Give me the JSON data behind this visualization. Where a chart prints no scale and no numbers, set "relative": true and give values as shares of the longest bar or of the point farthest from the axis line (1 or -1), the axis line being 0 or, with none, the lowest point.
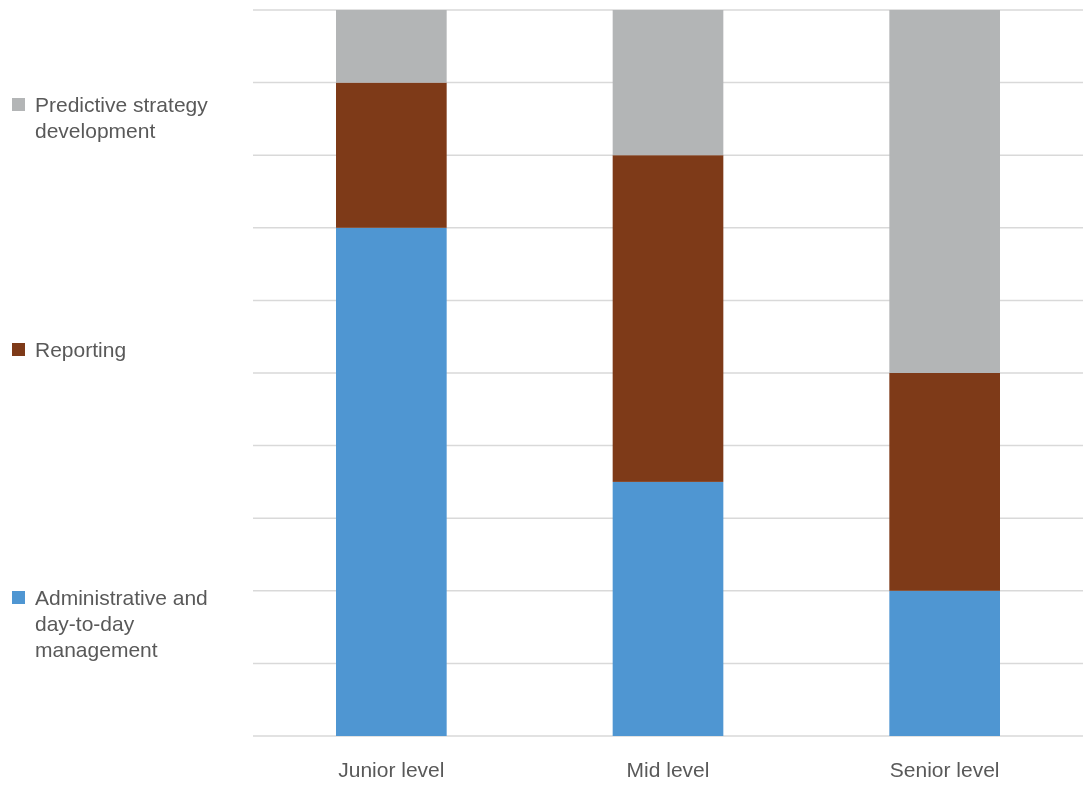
{
  "chart_data": {
    "type": "bar",
    "stacked": true,
    "relative": true,
    "categories": [
      "Junior level",
      "Mid level",
      "Senior level"
    ],
    "series": [
      {
        "name": "Administrative and day-to-day management",
        "color": "#4f96d2",
        "values": [
          0.7,
          0.35,
          0.2
        ]
      },
      {
        "name": "Reporting",
        "color": "#7e3a18",
        "values": [
          0.2,
          0.45,
          0.3
        ]
      },
      {
        "name": "Predictive strategy development",
        "color": "#b3b5b6",
        "values": [
          0.1,
          0.2,
          0.5
        ]
      }
    ],
    "grid": "y",
    "legend": "left"
  }
}
